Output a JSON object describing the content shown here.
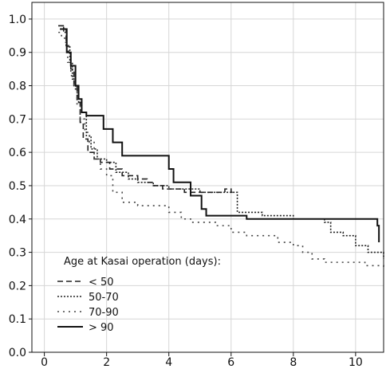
{
  "chart_data": {
    "type": "line",
    "step": true,
    "title": "",
    "xlabel": "",
    "ylabel": "",
    "xlim": [
      -0.4,
      10.9
    ],
    "ylim": [
      0,
      1.05
    ],
    "x_ticks": [
      0,
      2,
      4,
      6,
      8,
      10
    ],
    "y_ticks": [
      0.0,
      0.1,
      0.2,
      0.3,
      0.4,
      0.5,
      0.6,
      0.7,
      0.8,
      0.9,
      1.0
    ],
    "y_tick_labels": [
      "0.0",
      "0.1",
      "0.2",
      "0.3",
      "0.4",
      "0.5",
      "0.6",
      "0.7",
      "0.8",
      "0.9",
      "1.0"
    ],
    "grid": true,
    "legend": {
      "title": "Age at Kasai operation (days):",
      "placement": "bottom-left"
    },
    "series": [
      {
        "name": "< 50",
        "style": "dashed",
        "color": "#222222",
        "points": [
          [
            0.45,
            0.98
          ],
          [
            0.65,
            0.97
          ],
          [
            0.7,
            0.92
          ],
          [
            0.78,
            0.9
          ],
          [
            0.85,
            0.85
          ],
          [
            0.95,
            0.8
          ],
          [
            1.05,
            0.75
          ],
          [
            1.15,
            0.69
          ],
          [
            1.25,
            0.64
          ],
          [
            1.4,
            0.6
          ],
          [
            1.6,
            0.58
          ],
          [
            1.8,
            0.57
          ],
          [
            2.1,
            0.55
          ],
          [
            2.5,
            0.53
          ],
          [
            3.0,
            0.52
          ],
          [
            3.3,
            0.51
          ],
          [
            3.5,
            0.5
          ],
          [
            3.8,
            0.49
          ],
          [
            4.5,
            0.48
          ],
          [
            5.0,
            0.48
          ],
          [
            5.5,
            0.48
          ],
          [
            5.8,
            0.49
          ],
          [
            6.0,
            0.48
          ],
          [
            6.05,
            0.48
          ]
        ]
      },
      {
        "name": "50-70",
        "style": "dotted",
        "color": "#222222",
        "points": [
          [
            0.45,
            0.98
          ],
          [
            0.62,
            0.96
          ],
          [
            0.72,
            0.92
          ],
          [
            0.82,
            0.87
          ],
          [
            0.9,
            0.82
          ],
          [
            1.0,
            0.79
          ],
          [
            1.1,
            0.75
          ],
          [
            1.2,
            0.72
          ],
          [
            1.35,
            0.65
          ],
          [
            1.5,
            0.61
          ],
          [
            1.7,
            0.58
          ],
          [
            2.0,
            0.57
          ],
          [
            2.3,
            0.54
          ],
          [
            2.7,
            0.52
          ],
          [
            3.0,
            0.51
          ],
          [
            3.5,
            0.5
          ],
          [
            4.0,
            0.49
          ],
          [
            4.5,
            0.49
          ],
          [
            5.0,
            0.48
          ],
          [
            5.8,
            0.48
          ],
          [
            6.2,
            0.42
          ],
          [
            7.0,
            0.41
          ],
          [
            8.0,
            0.4
          ],
          [
            9.0,
            0.39
          ],
          [
            9.2,
            0.36
          ],
          [
            9.6,
            0.35
          ],
          [
            10.0,
            0.32
          ],
          [
            10.4,
            0.3
          ],
          [
            10.9,
            0.28
          ]
        ]
      },
      {
        "name": "70-90",
        "style": "dotted-sparse",
        "color": "#444444",
        "points": [
          [
            0.45,
            0.96
          ],
          [
            0.55,
            0.95
          ],
          [
            0.65,
            0.93
          ],
          [
            0.75,
            0.87
          ],
          [
            0.85,
            0.83
          ],
          [
            0.95,
            0.8
          ],
          [
            1.05,
            0.74
          ],
          [
            1.15,
            0.7
          ],
          [
            1.3,
            0.66
          ],
          [
            1.45,
            0.63
          ],
          [
            1.6,
            0.58
          ],
          [
            1.8,
            0.55
          ],
          [
            2.0,
            0.53
          ],
          [
            2.2,
            0.48
          ],
          [
            2.5,
            0.45
          ],
          [
            3.0,
            0.44
          ],
          [
            3.5,
            0.44
          ],
          [
            4.0,
            0.42
          ],
          [
            4.4,
            0.4
          ],
          [
            4.7,
            0.39
          ],
          [
            5.5,
            0.38
          ],
          [
            6.0,
            0.36
          ],
          [
            6.5,
            0.35
          ],
          [
            7.0,
            0.35
          ],
          [
            7.5,
            0.33
          ],
          [
            8.0,
            0.32
          ],
          [
            8.3,
            0.3
          ],
          [
            8.6,
            0.28
          ],
          [
            9.0,
            0.27
          ],
          [
            10.3,
            0.26
          ],
          [
            10.9,
            0.25
          ]
        ]
      },
      {
        "name": "> 90",
        "style": "solid",
        "color": "#111111",
        "points": [
          [
            0.5,
            0.97
          ],
          [
            0.72,
            0.9
          ],
          [
            0.85,
            0.86
          ],
          [
            1.0,
            0.8
          ],
          [
            1.1,
            0.76
          ],
          [
            1.2,
            0.72
          ],
          [
            1.35,
            0.71
          ],
          [
            1.5,
            0.71
          ],
          [
            1.9,
            0.67
          ],
          [
            2.2,
            0.63
          ],
          [
            2.5,
            0.59
          ],
          [
            3.0,
            0.59
          ],
          [
            4.0,
            0.55
          ],
          [
            4.15,
            0.51
          ],
          [
            4.7,
            0.47
          ],
          [
            5.05,
            0.43
          ],
          [
            5.2,
            0.41
          ],
          [
            6.0,
            0.41
          ],
          [
            6.5,
            0.4
          ],
          [
            10.2,
            0.4
          ],
          [
            10.7,
            0.38
          ],
          [
            10.75,
            0.33
          ]
        ]
      }
    ]
  }
}
